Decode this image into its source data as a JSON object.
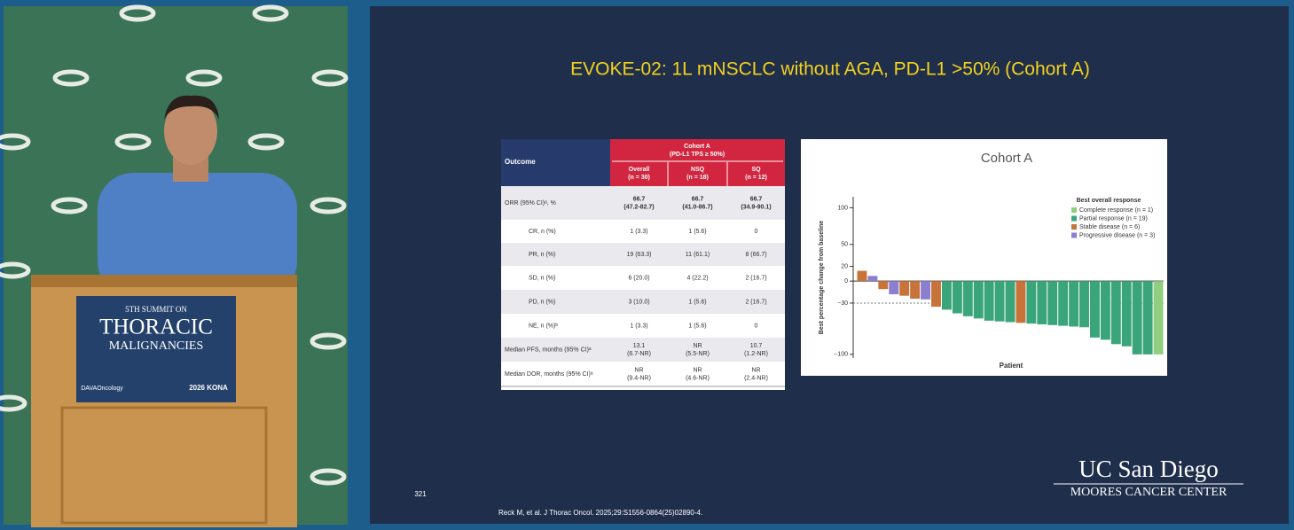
{
  "podium": {
    "line1": "5TH SUMMIT ON",
    "line2": "THORACIC",
    "line3": "MALIGNANCIES",
    "brand": "DAVAOncology",
    "event": "2026 KONA"
  },
  "slide": {
    "title": "EVOKE-02: 1L mNSCLC without AGA, PD-L1 >50% (Cohort A)",
    "page_number": "321",
    "reference": "Reck M, et al. J Thorac Oncol. 2025;29:S1556-0864(25)02890-4.",
    "logo_line1": "UC San Diego",
    "logo_line2": "MOORES CANCER CENTER"
  },
  "table": {
    "outcome_header": "Outcome",
    "group_header": [
      "Cohort A",
      "(PD-L1 TPS ≥ 50%)"
    ],
    "columns": [
      [
        "Overall",
        "(n = 30)"
      ],
      [
        "NSQ",
        "(n = 18)"
      ],
      [
        "SQ",
        "(n = 12)"
      ]
    ],
    "rows": [
      {
        "label": "ORR (95% CI)ᵃ, %",
        "cells": [
          [
            "66.7",
            "(47.2-82.7)"
          ],
          [
            "66.7",
            "(41.0-86.7)"
          ],
          [
            "66.7",
            "(34.9-90.1)"
          ]
        ]
      },
      {
        "label": "CR, n (%)",
        "cells": [
          [
            "1 (3.3)"
          ],
          [
            "1 (5.6)"
          ],
          [
            "0"
          ]
        ]
      },
      {
        "label": "PR, n (%)",
        "cells": [
          [
            "19 (63.3)"
          ],
          [
            "11 (61.1)"
          ],
          [
            "8 (66.7)"
          ]
        ]
      },
      {
        "label": "SD, n (%)",
        "cells": [
          [
            "6 (20.0)"
          ],
          [
            "4 (22.2)"
          ],
          [
            "2 (16.7)"
          ]
        ]
      },
      {
        "label": "PD, n (%)",
        "cells": [
          [
            "3 (10.0)"
          ],
          [
            "1 (5.6)"
          ],
          [
            "2 (16.7)"
          ]
        ]
      },
      {
        "label": "NE, n (%)ᵇ",
        "cells": [
          [
            "1 (3.3)"
          ],
          [
            "1 (5.6)"
          ],
          [
            "0"
          ]
        ]
      },
      {
        "label": "Median PFS, months (95% CI)ᵃ",
        "cells": [
          [
            "13.1",
            "(6.7-NR)"
          ],
          [
            "NR",
            "(5.5-NR)"
          ],
          [
            "10.7",
            "(1.2-NR)"
          ]
        ]
      },
      {
        "label": "Median DOR, months (95% CI)ᵃ",
        "cells": [
          [
            "NR",
            "(9.4-NR)"
          ],
          [
            "NR",
            "(4.6-NR)"
          ],
          [
            "NR",
            "(2.4-NR)"
          ]
        ]
      }
    ]
  },
  "chart_data": {
    "type": "bar",
    "title": "Cohort A",
    "ylabel": "Best percentage change from baseline",
    "xlabel": "Patient",
    "values": [
      14,
      7,
      -11,
      -18,
      -20,
      -24,
      -25,
      -35,
      -39,
      -44,
      -48,
      -51,
      -54,
      -55,
      -56,
      -57,
      -58,
      -59,
      -60,
      -61,
      -62,
      -63,
      -77,
      -80,
      -86,
      -89,
      -100,
      -100,
      -100
    ],
    "bar_colors": [
      "#c8733a",
      "#8b7fcf",
      "#c8733a",
      "#8b7fcf",
      "#c8733a",
      "#c8733a",
      "#8b7fcf",
      "#c8733a",
      "#3aa57a",
      "#3aa57a",
      "#3aa57a",
      "#3aa57a",
      "#3aa57a",
      "#3aa57a",
      "#3aa57a",
      "#c8733a",
      "#3aa57a",
      "#3aa57a",
      "#3aa57a",
      "#3aa57a",
      "#3aa57a",
      "#3aa57a",
      "#3aa57a",
      "#3aa57a",
      "#3aa57a",
      "#3aa57a",
      "#3aa57a",
      "#3aa57a",
      "#8fcf7f"
    ],
    "ylim": [
      -105,
      115
    ],
    "yticks": [
      100,
      50,
      20,
      0,
      {
        "value": -30,
        "label": "−30"
      },
      {
        "value": -100,
        "label": "−100"
      }
    ],
    "reference_line": -30,
    "legend": {
      "title": "Best overall response",
      "items": [
        {
          "name": "Complete response (n = 1)",
          "color": "#8fcf7f"
        },
        {
          "name": "Partial response (n = 19)",
          "color": "#3aa57a"
        },
        {
          "name": "Stable disease (n = 6)",
          "color": "#c8733a"
        },
        {
          "name": "Progressive disease (n = 3)",
          "color": "#8b7fcf"
        }
      ]
    }
  }
}
